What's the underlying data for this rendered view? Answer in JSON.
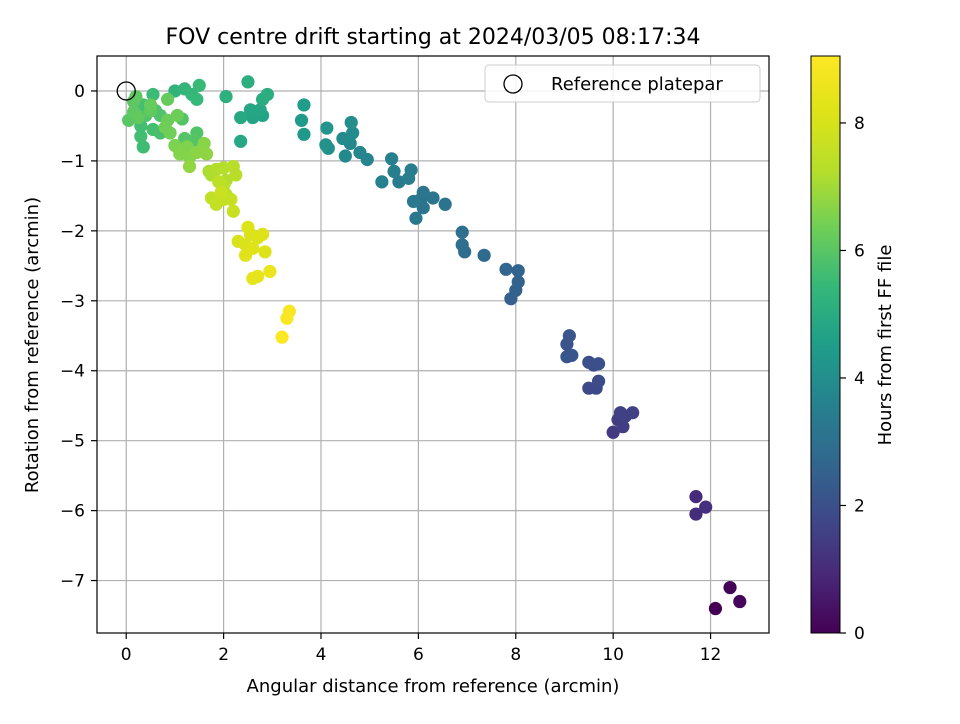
{
  "chart_data": {
    "type": "scatter",
    "title": "FOV centre drift starting at 2024/03/05 08:17:34",
    "xlabel": "Angular distance from reference (arcmin)",
    "ylabel": "Rotation from reference (arcmin)",
    "xlim": [
      -0.6,
      13.2
    ],
    "ylim": [
      -7.75,
      0.5
    ],
    "xticks": [
      0,
      2,
      4,
      6,
      8,
      10,
      12
    ],
    "yticks": [
      0,
      -1,
      -2,
      -3,
      -4,
      -5,
      -6,
      -7
    ],
    "xtick_labels": [
      "0",
      "2",
      "4",
      "6",
      "8",
      "10",
      "12"
    ],
    "ytick_labels": [
      "0",
      "−1",
      "−2",
      "−3",
      "−4",
      "−5",
      "−6",
      "−7"
    ],
    "grid": true,
    "legend": {
      "position": "top-right",
      "entries": [
        "Reference platepar"
      ]
    },
    "colorbar": {
      "label": "Hours from first FF file",
      "colormap": "viridis",
      "range": [
        0,
        9.05
      ],
      "ticks": [
        0,
        2,
        4,
        6,
        8
      ],
      "tick_labels": [
        "0",
        "2",
        "4",
        "6",
        "8"
      ]
    },
    "reference_point": {
      "x": 0,
      "y": 0
    },
    "points": [
      [
        12.1,
        -7.4,
        0.0
      ],
      [
        12.4,
        -7.1,
        0.1
      ],
      [
        12.6,
        -7.3,
        0.15
      ],
      [
        11.7,
        -5.8,
        1.0
      ],
      [
        11.7,
        -6.05,
        1.05
      ],
      [
        11.9,
        -5.95,
        1.1
      ],
      [
        10.0,
        -4.88,
        1.4
      ],
      [
        10.1,
        -4.7,
        1.45
      ],
      [
        10.2,
        -4.8,
        1.5
      ],
      [
        10.25,
        -4.65,
        1.55
      ],
      [
        10.4,
        -4.6,
        1.6
      ],
      [
        10.15,
        -4.6,
        1.6
      ],
      [
        9.5,
        -4.25,
        1.8
      ],
      [
        9.65,
        -4.25,
        1.85
      ],
      [
        9.7,
        -4.15,
        1.9
      ],
      [
        9.6,
        -3.92,
        1.95
      ],
      [
        9.5,
        -3.88,
        2.0
      ],
      [
        9.7,
        -3.9,
        2.0
      ],
      [
        9.05,
        -3.62,
        2.1
      ],
      [
        9.1,
        -3.5,
        2.15
      ],
      [
        9.05,
        -3.8,
        2.15
      ],
      [
        9.15,
        -3.78,
        2.2
      ],
      [
        7.9,
        -2.97,
        2.5
      ],
      [
        8.0,
        -2.85,
        2.55
      ],
      [
        8.05,
        -2.73,
        2.55
      ],
      [
        8.05,
        -2.57,
        2.6
      ],
      [
        7.8,
        -2.55,
        2.65
      ],
      [
        7.35,
        -2.35,
        2.8
      ],
      [
        6.95,
        -2.3,
        2.9
      ],
      [
        6.9,
        -2.2,
        2.95
      ],
      [
        6.9,
        -2.02,
        3.0
      ],
      [
        6.55,
        -1.62,
        3.1
      ],
      [
        6.1,
        -1.67,
        3.15
      ],
      [
        6.05,
        -1.55,
        3.15
      ],
      [
        6.1,
        -1.45,
        3.2
      ],
      [
        6.3,
        -1.53,
        3.2
      ],
      [
        5.95,
        -1.82,
        3.25
      ],
      [
        5.9,
        -1.58,
        3.3
      ],
      [
        5.6,
        -1.3,
        3.4
      ],
      [
        5.8,
        -1.25,
        3.45
      ],
      [
        5.85,
        -1.13,
        3.45
      ],
      [
        5.5,
        -1.15,
        3.5
      ],
      [
        5.45,
        -0.97,
        3.55
      ],
      [
        5.25,
        -1.3,
        3.6
      ],
      [
        4.95,
        -0.98,
        3.7
      ],
      [
        4.8,
        -0.88,
        3.75
      ],
      [
        4.6,
        -0.75,
        3.8
      ],
      [
        4.5,
        -0.93,
        3.85
      ],
      [
        4.45,
        -0.68,
        3.9
      ],
      [
        4.65,
        -0.6,
        3.95
      ],
      [
        4.62,
        -0.45,
        4.0
      ],
      [
        4.15,
        -0.82,
        4.1
      ],
      [
        4.1,
        -0.77,
        4.15
      ],
      [
        4.12,
        -0.53,
        4.2
      ],
      [
        3.65,
        -0.62,
        4.35
      ],
      [
        3.6,
        -0.42,
        4.4
      ],
      [
        3.65,
        -0.2,
        4.5
      ],
      [
        2.8,
        -0.35,
        4.7
      ],
      [
        2.6,
        -0.38,
        4.75
      ],
      [
        2.55,
        -0.27,
        4.8
      ],
      [
        2.75,
        -0.27,
        4.8
      ],
      [
        2.35,
        -0.72,
        4.85
      ],
      [
        2.35,
        -0.38,
        4.9
      ],
      [
        2.8,
        -0.12,
        5.0
      ],
      [
        2.9,
        -0.05,
        5.05
      ],
      [
        2.5,
        0.13,
        5.1
      ],
      [
        2.05,
        -0.08,
        5.15
      ],
      [
        1.0,
        0.0,
        5.3
      ],
      [
        1.2,
        0.03,
        5.35
      ],
      [
        1.35,
        -0.05,
        5.4
      ],
      [
        1.45,
        -0.12,
        5.45
      ],
      [
        1.5,
        0.08,
        5.5
      ],
      [
        0.55,
        -0.05,
        5.55
      ],
      [
        0.35,
        -0.8,
        5.6
      ],
      [
        0.3,
        -0.65,
        5.65
      ],
      [
        0.3,
        -0.5,
        5.65
      ],
      [
        0.35,
        -0.2,
        5.7
      ],
      [
        0.55,
        -0.55,
        5.7
      ],
      [
        0.7,
        -0.6,
        5.75
      ],
      [
        0.6,
        -0.28,
        5.8
      ],
      [
        0.4,
        -0.35,
        5.85
      ],
      [
        0.7,
        -0.35,
        5.85
      ],
      [
        1.15,
        -0.4,
        5.9
      ],
      [
        1.45,
        -0.6,
        5.9
      ],
      [
        1.4,
        -0.7,
        5.95
      ],
      [
        1.2,
        -0.68,
        5.95
      ],
      [
        0.05,
        -0.42,
        6.0
      ],
      [
        0.15,
        -0.15,
        6.05
      ],
      [
        0.2,
        -0.08,
        6.1
      ],
      [
        0.15,
        -0.3,
        6.1
      ],
      [
        0.25,
        -0.38,
        6.15
      ],
      [
        0.5,
        -0.28,
        6.15
      ],
      [
        0.85,
        -0.12,
        6.2
      ],
      [
        0.5,
        -0.2,
        6.2
      ],
      [
        0.85,
        -0.42,
        6.25
      ],
      [
        1.05,
        -0.35,
        6.3
      ],
      [
        0.9,
        -0.6,
        6.35
      ],
      [
        0.8,
        -0.52,
        6.35
      ],
      [
        1.0,
        -0.78,
        6.5
      ],
      [
        1.15,
        -0.85,
        6.55
      ],
      [
        1.25,
        -0.8,
        6.55
      ],
      [
        1.3,
        -0.95,
        6.6
      ],
      [
        1.1,
        -0.9,
        6.6
      ],
      [
        1.6,
        -0.75,
        6.65
      ],
      [
        1.45,
        -0.88,
        6.7
      ],
      [
        1.65,
        -0.9,
        6.75
      ],
      [
        1.3,
        -1.08,
        6.8
      ],
      [
        1.7,
        -1.15,
        7.1
      ],
      [
        1.75,
        -1.2,
        7.15
      ],
      [
        1.85,
        -1.12,
        7.2
      ],
      [
        2.05,
        -1.28,
        7.2
      ],
      [
        2.0,
        -1.1,
        7.25
      ],
      [
        2.2,
        -1.08,
        7.3
      ],
      [
        2.25,
        -1.2,
        7.3
      ],
      [
        2.0,
        -1.35,
        7.35
      ],
      [
        2.05,
        -1.48,
        7.35
      ],
      [
        1.9,
        -1.3,
        7.4
      ],
      [
        1.75,
        -1.53,
        7.5
      ],
      [
        1.85,
        -1.62,
        7.55
      ],
      [
        2.0,
        -1.55,
        7.6
      ],
      [
        2.15,
        -1.55,
        7.6
      ],
      [
        2.2,
        -1.72,
        7.65
      ],
      [
        1.95,
        -1.45,
        7.7
      ],
      [
        2.3,
        -2.15,
        8.0
      ],
      [
        2.45,
        -2.2,
        8.05
      ],
      [
        2.55,
        -2.05,
        8.05
      ],
      [
        2.5,
        -1.95,
        8.1
      ],
      [
        2.7,
        -2.1,
        8.1
      ],
      [
        2.8,
        -2.05,
        8.15
      ],
      [
        2.85,
        -2.3,
        8.15
      ],
      [
        2.6,
        -2.25,
        8.2
      ],
      [
        2.45,
        -2.35,
        8.25
      ],
      [
        2.6,
        -2.68,
        8.4
      ],
      [
        2.7,
        -2.65,
        8.45
      ],
      [
        2.95,
        -2.58,
        8.5
      ],
      [
        3.35,
        -3.15,
        8.9
      ],
      [
        3.3,
        -3.25,
        8.95
      ],
      [
        3.2,
        -3.52,
        9.0
      ]
    ]
  }
}
